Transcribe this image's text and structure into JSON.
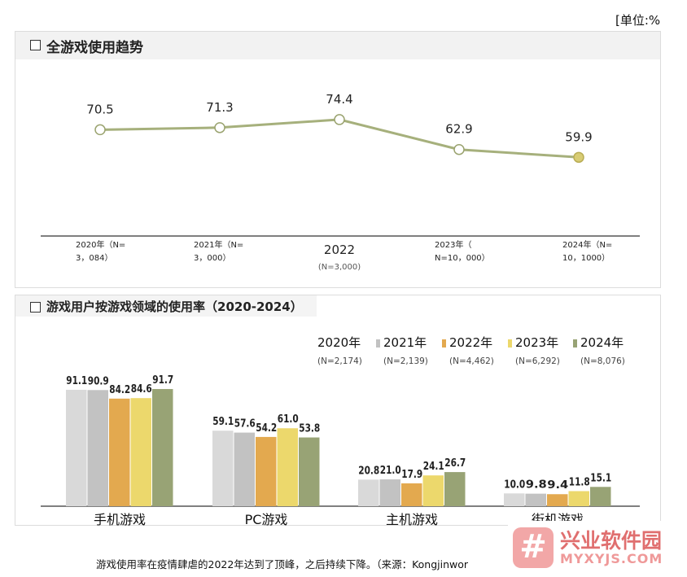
{
  "unit_label": "[单位:%",
  "panel1": {
    "title": "全游戏使用趋势"
  },
  "panel2": {
    "title": "游戏用户按游戏领域的使用率（2020-2024）"
  },
  "caption": "游戏使用率在疫情肆虐的2022年达到了顶峰，之后持续下降。（来源：Kongjinwor",
  "watermark": {
    "icon": "#",
    "title": "兴业软件园",
    "url": "MYXYJS.COM"
  },
  "colors": {
    "line": "#a6b07c",
    "marker_fill": "#ffffff",
    "marker_last": "#d8cc74",
    "axis": "#555555",
    "series": [
      "#d9d9d9",
      "#c2c2c2",
      "#e3a94f",
      "#ecd86c",
      "#98a375"
    ]
  },
  "chart_data": [
    {
      "type": "line",
      "title": "全游戏使用趋势",
      "x_labels": [
        [
          "2020年（N=",
          "3，084）"
        ],
        [
          "2021年（N=",
          "3，000）"
        ],
        [
          "2022",
          "(N=3,000)"
        ],
        [
          "2023年（",
          "N=10，000）"
        ],
        [
          "2024年（N=",
          "10，1000）"
        ]
      ],
      "values": [
        70.5,
        71.3,
        74.4,
        62.9,
        59.9
      ],
      "value_labels": [
        "70.5",
        "71.3",
        "74.4",
        "62.9",
        "59.9"
      ],
      "ylim": [
        0,
        100
      ],
      "grid": false
    },
    {
      "type": "bar",
      "title": "游戏用户按游戏领域的使用率（2020-2024）",
      "categories": [
        "手机游戏",
        "PC游戏",
        "主机游戏",
        "街机游戏"
      ],
      "series": [
        {
          "name": "2020年",
          "n_label": "(N=2,174)",
          "values": [
            91.1,
            59.1,
            20.8,
            10.0
          ],
          "value_labels": [
            "91.1",
            "59.1",
            "20.8",
            "10.0"
          ]
        },
        {
          "name": "2021年",
          "n_label": "(N=2,139)",
          "values": [
            90.9,
            57.6,
            21.0,
            9.8
          ],
          "value_labels": [
            "90.9",
            "57.6",
            "21.0",
            "9.8"
          ]
        },
        {
          "name": "2022年",
          "n_label": "(N=4,462)",
          "values": [
            84.2,
            54.2,
            17.9,
            9.4
          ],
          "value_labels": [
            "84.2",
            "54.2",
            "17.9",
            "9.4"
          ]
        },
        {
          "name": "2023年",
          "n_label": "(N=6,292)",
          "values": [
            84.6,
            61.0,
            24.1,
            11.8
          ],
          "value_labels": [
            "84.6",
            "61.0",
            "24.1",
            "11.8"
          ]
        },
        {
          "name": "2024年",
          "n_label": "(N=8,076)",
          "values": [
            91.7,
            53.8,
            26.7,
            15.1
          ],
          "value_labels": [
            "91.7",
            "53.8",
            "26.7",
            "15.1"
          ]
        }
      ],
      "ylim": [
        0,
        100
      ],
      "legend_position": "top-right",
      "grid": false
    }
  ]
}
